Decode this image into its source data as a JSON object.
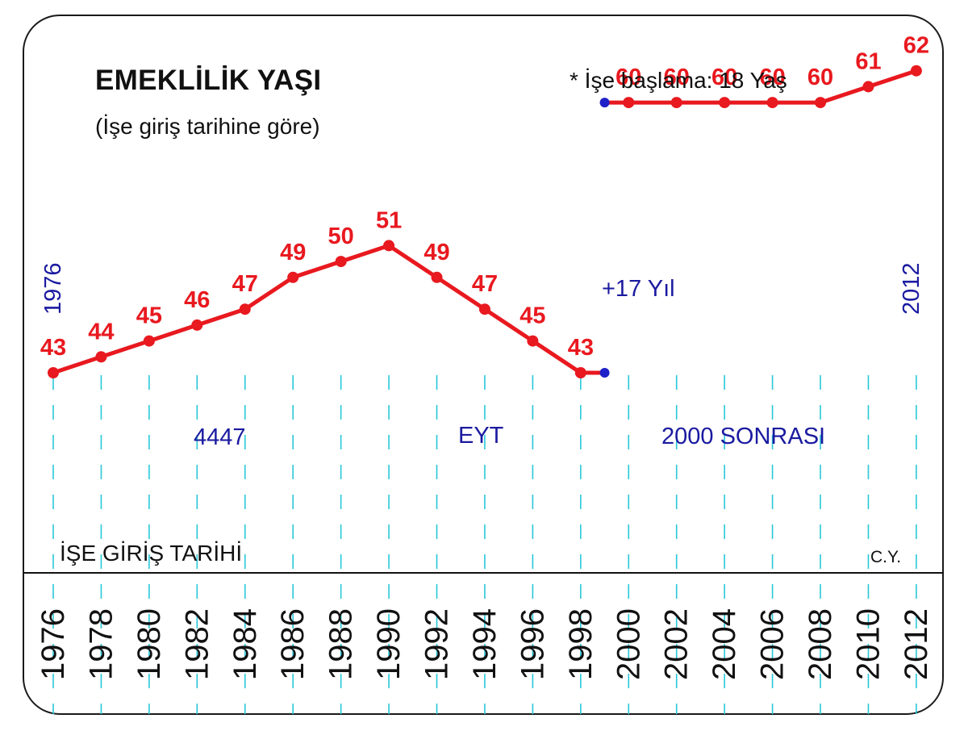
{
  "header": {
    "title": "EMEKLİLİK YAŞI",
    "subtitle": "(İşe giriş tarihine göre)",
    "note": "* İşe başlama: 18 Yaş"
  },
  "annotations": {
    "period_1": "4447",
    "period_2": "EYT",
    "period_3": "2000 SONRASI",
    "gap": "+17 Yıl",
    "start_year": "1976",
    "end_year": "2012",
    "axis_title": "İŞE GİRİŞ TARİHİ",
    "credit": "C.Y."
  },
  "colors": {
    "series": "#e8191f",
    "marker": "#e8191f",
    "boundary_marker": "#1e20c8",
    "grid": "#28c8d8",
    "annotation_text": "#1a1aa0"
  },
  "chart_data": {
    "type": "line",
    "title": "EMEKLİLİK YAŞI",
    "subtitle": "(İşe giriş tarihine göre)",
    "xlabel": "İŞE GİRİŞ TARİHİ",
    "ylabel": "",
    "x_ticks": [
      "1976",
      "1978",
      "1980",
      "1982",
      "1984",
      "1986",
      "1988",
      "1990",
      "1992",
      "1994",
      "1996",
      "1998",
      "2000",
      "2002",
      "2004",
      "2006",
      "2008",
      "2010",
      "2012"
    ],
    "grid": "vertical dashed lines at each tick",
    "legend": "none",
    "series": [
      {
        "points": [
          {
            "x": 1976,
            "y": 43,
            "label": "43"
          },
          {
            "x": 1978,
            "y": 44,
            "label": "44"
          },
          {
            "x": 1980,
            "y": 45,
            "label": "45"
          },
          {
            "x": 1982,
            "y": 46,
            "label": "46"
          },
          {
            "x": 1984,
            "y": 47,
            "label": "47"
          },
          {
            "x": 1986,
            "y": 49,
            "label": "49"
          },
          {
            "x": 1988,
            "y": 50,
            "label": "50"
          },
          {
            "x": 1990,
            "y": 51,
            "label": "51"
          },
          {
            "x": 1992,
            "y": 49,
            "label": "49"
          },
          {
            "x": 1994,
            "y": 47,
            "label": "47"
          },
          {
            "x": 1996,
            "y": 45,
            "label": "45"
          },
          {
            "x": 1998,
            "y": 43,
            "label": "43"
          },
          {
            "x": 1999,
            "y": 43,
            "label": ""
          }
        ]
      },
      {
        "points": [
          {
            "x": 1999,
            "y": 60,
            "label": ""
          },
          {
            "x": 2000,
            "y": 60,
            "label": "60"
          },
          {
            "x": 2002,
            "y": 60,
            "label": "60"
          },
          {
            "x": 2004,
            "y": 60,
            "label": "60"
          },
          {
            "x": 2006,
            "y": 60,
            "label": "60"
          },
          {
            "x": 2008,
            "y": 60,
            "label": "60"
          },
          {
            "x": 2010,
            "y": 61,
            "label": "61"
          },
          {
            "x": 2012,
            "y": 62,
            "label": "62"
          }
        ]
      }
    ]
  }
}
